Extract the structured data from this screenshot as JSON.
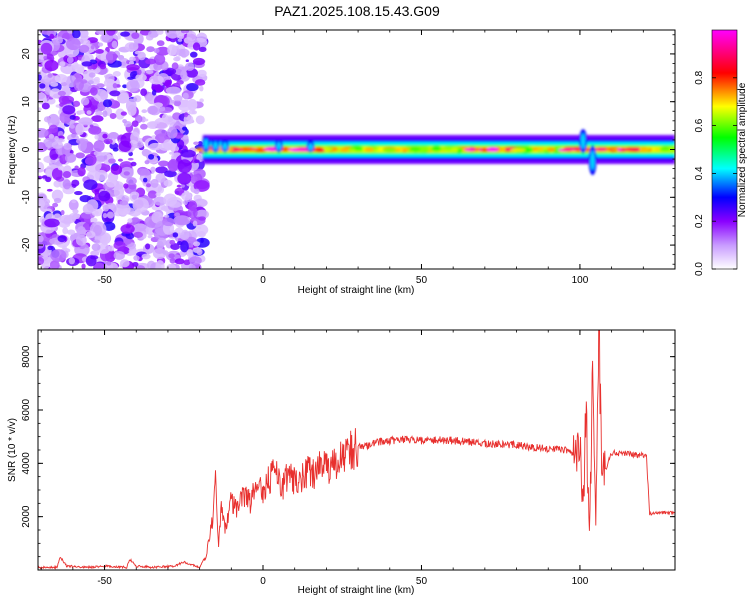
{
  "title": "PAZ1.2025.108.15.43.G09",
  "chart_data": [
    {
      "type": "heatmap",
      "xlabel": "Height of straight line (km)",
      "ylabel": "Frequency (Hz)",
      "xlim": [
        -71,
        130
      ],
      "ylim": [
        -25,
        25
      ],
      "xticks": [
        -50,
        0,
        50,
        100
      ],
      "yticks": [
        -20,
        -10,
        0,
        10,
        20
      ],
      "grid": false,
      "colorbar": {
        "label": "Normalized spectral amplitude",
        "range": [
          0,
          1
        ],
        "ticks": [
          0.0,
          0.2,
          0.4,
          0.6,
          0.8
        ],
        "colors": [
          "#ffffff",
          "#8a00ff",
          "#0000ff",
          "#00ffff",
          "#00ff00",
          "#ffff00",
          "#ff0000",
          "#ff00ff"
        ]
      },
      "regions": [
        {
          "x_range": [
            -71,
            -19
          ],
          "description_values": "scattered low amplitude 0.1-0.5 across -25 to 25 Hz"
        },
        {
          "x_range": [
            -19,
            130
          ],
          "center_frequency_hz": 0,
          "band_halfwidth_hz": 1.5,
          "peak_amplitude": 1.0
        }
      ]
    },
    {
      "type": "line",
      "xlabel": "Height of straight line (km)",
      "ylabel": "SNR (10 * v/v)",
      "xlim": [
        -71,
        130
      ],
      "ylim": [
        0,
        9000
      ],
      "xticks": [
        -50,
        0,
        50,
        100
      ],
      "yticks": [
        2000,
        4000,
        6000,
        8000
      ],
      "grid": false,
      "color": "#e8302e",
      "series": [
        {
          "x": [
            -71,
            -65,
            -64,
            -62,
            -55,
            -50,
            -43,
            -42,
            -40,
            -35,
            -28,
            -25,
            -20,
            -18,
            -16,
            -15,
            -14,
            -13,
            -12,
            -10,
            -8,
            -6,
            -4,
            -2,
            0,
            2,
            4,
            6,
            8,
            10,
            12,
            14,
            16,
            18,
            20,
            22,
            25,
            28,
            30,
            33,
            36,
            40,
            45,
            50,
            55,
            60,
            65,
            70,
            75,
            80,
            85,
            90,
            95,
            98,
            100,
            101,
            102,
            103,
            104,
            105,
            106,
            107,
            110,
            115,
            120,
            121,
            122,
            125,
            130
          ],
          "y": [
            100,
            100,
            500,
            150,
            100,
            150,
            100,
            400,
            150,
            100,
            150,
            300,
            100,
            500,
            1800,
            3200,
            900,
            2600,
            1500,
            2700,
            2200,
            2900,
            2500,
            3200,
            2800,
            3400,
            3600,
            3000,
            3700,
            3400,
            3300,
            3800,
            3600,
            4000,
            3700,
            4000,
            4200,
            4500,
            4600,
            4650,
            4800,
            4850,
            4900,
            4850,
            4880,
            4850,
            4800,
            4750,
            4700,
            4700,
            4600,
            4550,
            4500,
            4400,
            4300,
            2500,
            5800,
            1500,
            7000,
            1400,
            8500,
            3400,
            4400,
            4350,
            4300,
            4200,
            2100,
            2150,
            2150
          ]
        }
      ]
    }
  ]
}
